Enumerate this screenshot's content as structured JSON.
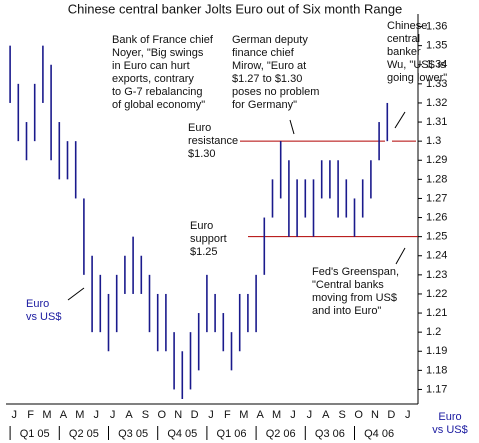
{
  "chart_data": {
    "type": "range-bar",
    "title": "Chinese central banker Jolts Euro out of Six month Range",
    "color": "#1a1a8c",
    "categories": [
      "J",
      null,
      "F",
      null,
      "M",
      null,
      "A",
      null,
      "M",
      null,
      "J",
      null,
      "J",
      null,
      "A",
      null,
      "S",
      null,
      "O",
      null,
      "N",
      null,
      "D",
      null,
      "J",
      null,
      "F",
      null,
      "M",
      null,
      "A",
      null,
      "M",
      null,
      "J",
      null,
      "J",
      null,
      "A",
      null,
      "S",
      null,
      "O",
      null,
      "N",
      null,
      "D",
      null,
      "J",
      null
    ],
    "high": [
      1.35,
      1.33,
      1.31,
      1.33,
      1.35,
      1.34,
      1.31,
      1.3,
      1.3,
      1.27,
      1.24,
      1.23,
      1.22,
      1.23,
      1.24,
      1.25,
      1.24,
      1.23,
      1.22,
      1.22,
      1.2,
      1.19,
      1.2,
      1.21,
      1.23,
      1.22,
      1.21,
      1.2,
      1.22,
      1.22,
      1.23,
      1.26,
      1.28,
      1.3,
      1.29,
      1.28,
      1.28,
      1.28,
      1.29,
      1.29,
      1.29,
      1.28,
      1.27,
      1.28,
      1.29,
      1.31,
      1.32,
      null,
      null,
      null
    ],
    "low": [
      1.32,
      1.3,
      1.29,
      1.3,
      1.32,
      1.29,
      1.28,
      1.28,
      1.27,
      1.23,
      1.2,
      1.2,
      1.19,
      1.2,
      1.22,
      1.22,
      1.22,
      1.2,
      1.19,
      1.19,
      1.17,
      1.165,
      1.17,
      1.18,
      1.2,
      1.2,
      1.19,
      1.18,
      1.19,
      1.2,
      1.2,
      1.23,
      1.26,
      1.27,
      1.25,
      1.25,
      1.26,
      1.25,
      1.27,
      1.27,
      1.26,
      1.26,
      1.25,
      1.26,
      1.27,
      1.29,
      1.3,
      null,
      null,
      null
    ],
    "quarters": [
      "Q1 05",
      "Q2 05",
      "Q3 05",
      "Q4 05",
      "Q1 06",
      "Q2 06",
      "Q3 06",
      "Q4 06"
    ],
    "ylim": [
      1.165,
      1.365
    ],
    "yticks": [
      1.17,
      1.18,
      1.19,
      1.2,
      1.21,
      1.22,
      1.23,
      1.24,
      1.25,
      1.26,
      1.27,
      1.28,
      1.29,
      1.3,
      1.31,
      1.32,
      1.33,
      1.34,
      1.35,
      1.36
    ],
    "reference_lines": [
      {
        "value": 1.3,
        "label": [
          "Euro",
          "resistance",
          "$1.30"
        ]
      },
      {
        "value": 1.25,
        "label": [
          "Euro",
          "support",
          "$1.25"
        ]
      }
    ],
    "annotations": [
      [
        "Bank of France chief",
        "Noyer, \"Big swings",
        "in Euro can hurt",
        "exports, contrary",
        "to G-7 rebalancing",
        "of global economy\""
      ],
      [
        "German deputy",
        "finance chief",
        "Mirow, \"Euro at",
        "$1.27 to $1.30",
        "poses no problem",
        "for Germany\""
      ],
      [
        "Chinese",
        "central",
        "banker",
        "Wu, \"US$ is",
        "going lower\""
      ],
      [
        "Fed's Greenspan,",
        "\"Central banks",
        "moving from US$",
        "and into Euro\""
      ],
      [
        "Euro",
        "vs US$"
      ]
    ],
    "x_axis_label": [
      "Euro",
      "vs US$"
    ]
  }
}
